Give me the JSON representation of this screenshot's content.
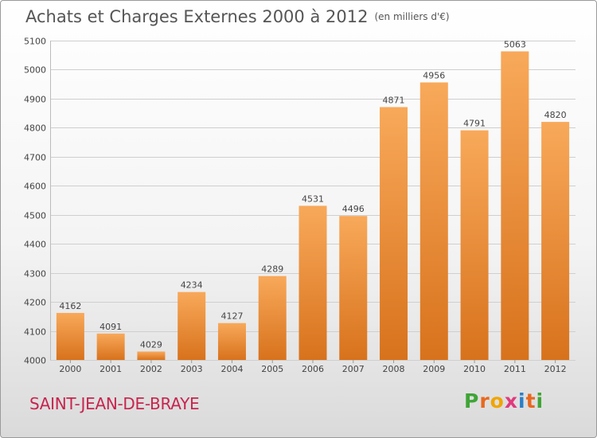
{
  "header": {
    "title": "Achats et Charges Externes 2000 à 2012",
    "subtitle": "(en milliers d'€)"
  },
  "footer": {
    "city": "SAINT-JEAN-DE-BRAYE",
    "logo_letters": [
      "P",
      "r",
      "o",
      "x",
      "i",
      "t",
      "i"
    ],
    "logo_colors": [
      "#3fa535",
      "#e8681e",
      "#f0a500",
      "#e03a7d",
      "#2c7fc7",
      "#e8681e",
      "#3fa535"
    ]
  },
  "colors": {
    "bar_top": "#f8a95a",
    "bar_bottom": "#d8721c",
    "grid": "#cfcfcf",
    "axis_text": "#444444",
    "title": "#555555",
    "city": "#c7254e"
  },
  "chart_data": {
    "type": "bar",
    "categories": [
      "2000",
      "2001",
      "2002",
      "2003",
      "2004",
      "2005",
      "2006",
      "2007",
      "2008",
      "2009",
      "2010",
      "2011",
      "2012"
    ],
    "values": [
      4162,
      4091,
      4029,
      4234,
      4127,
      4289,
      4531,
      4496,
      4871,
      4956,
      4791,
      5063,
      4820
    ],
    "ylim": [
      4000,
      5100
    ],
    "yticks": [
      4000,
      4100,
      4200,
      4300,
      4400,
      4500,
      4600,
      4700,
      4800,
      4900,
      5000,
      5100
    ],
    "title": "Achats et Charges Externes 2000 à 2012",
    "xlabel": "",
    "ylabel": "",
    "grid": true,
    "data_labels": true
  }
}
